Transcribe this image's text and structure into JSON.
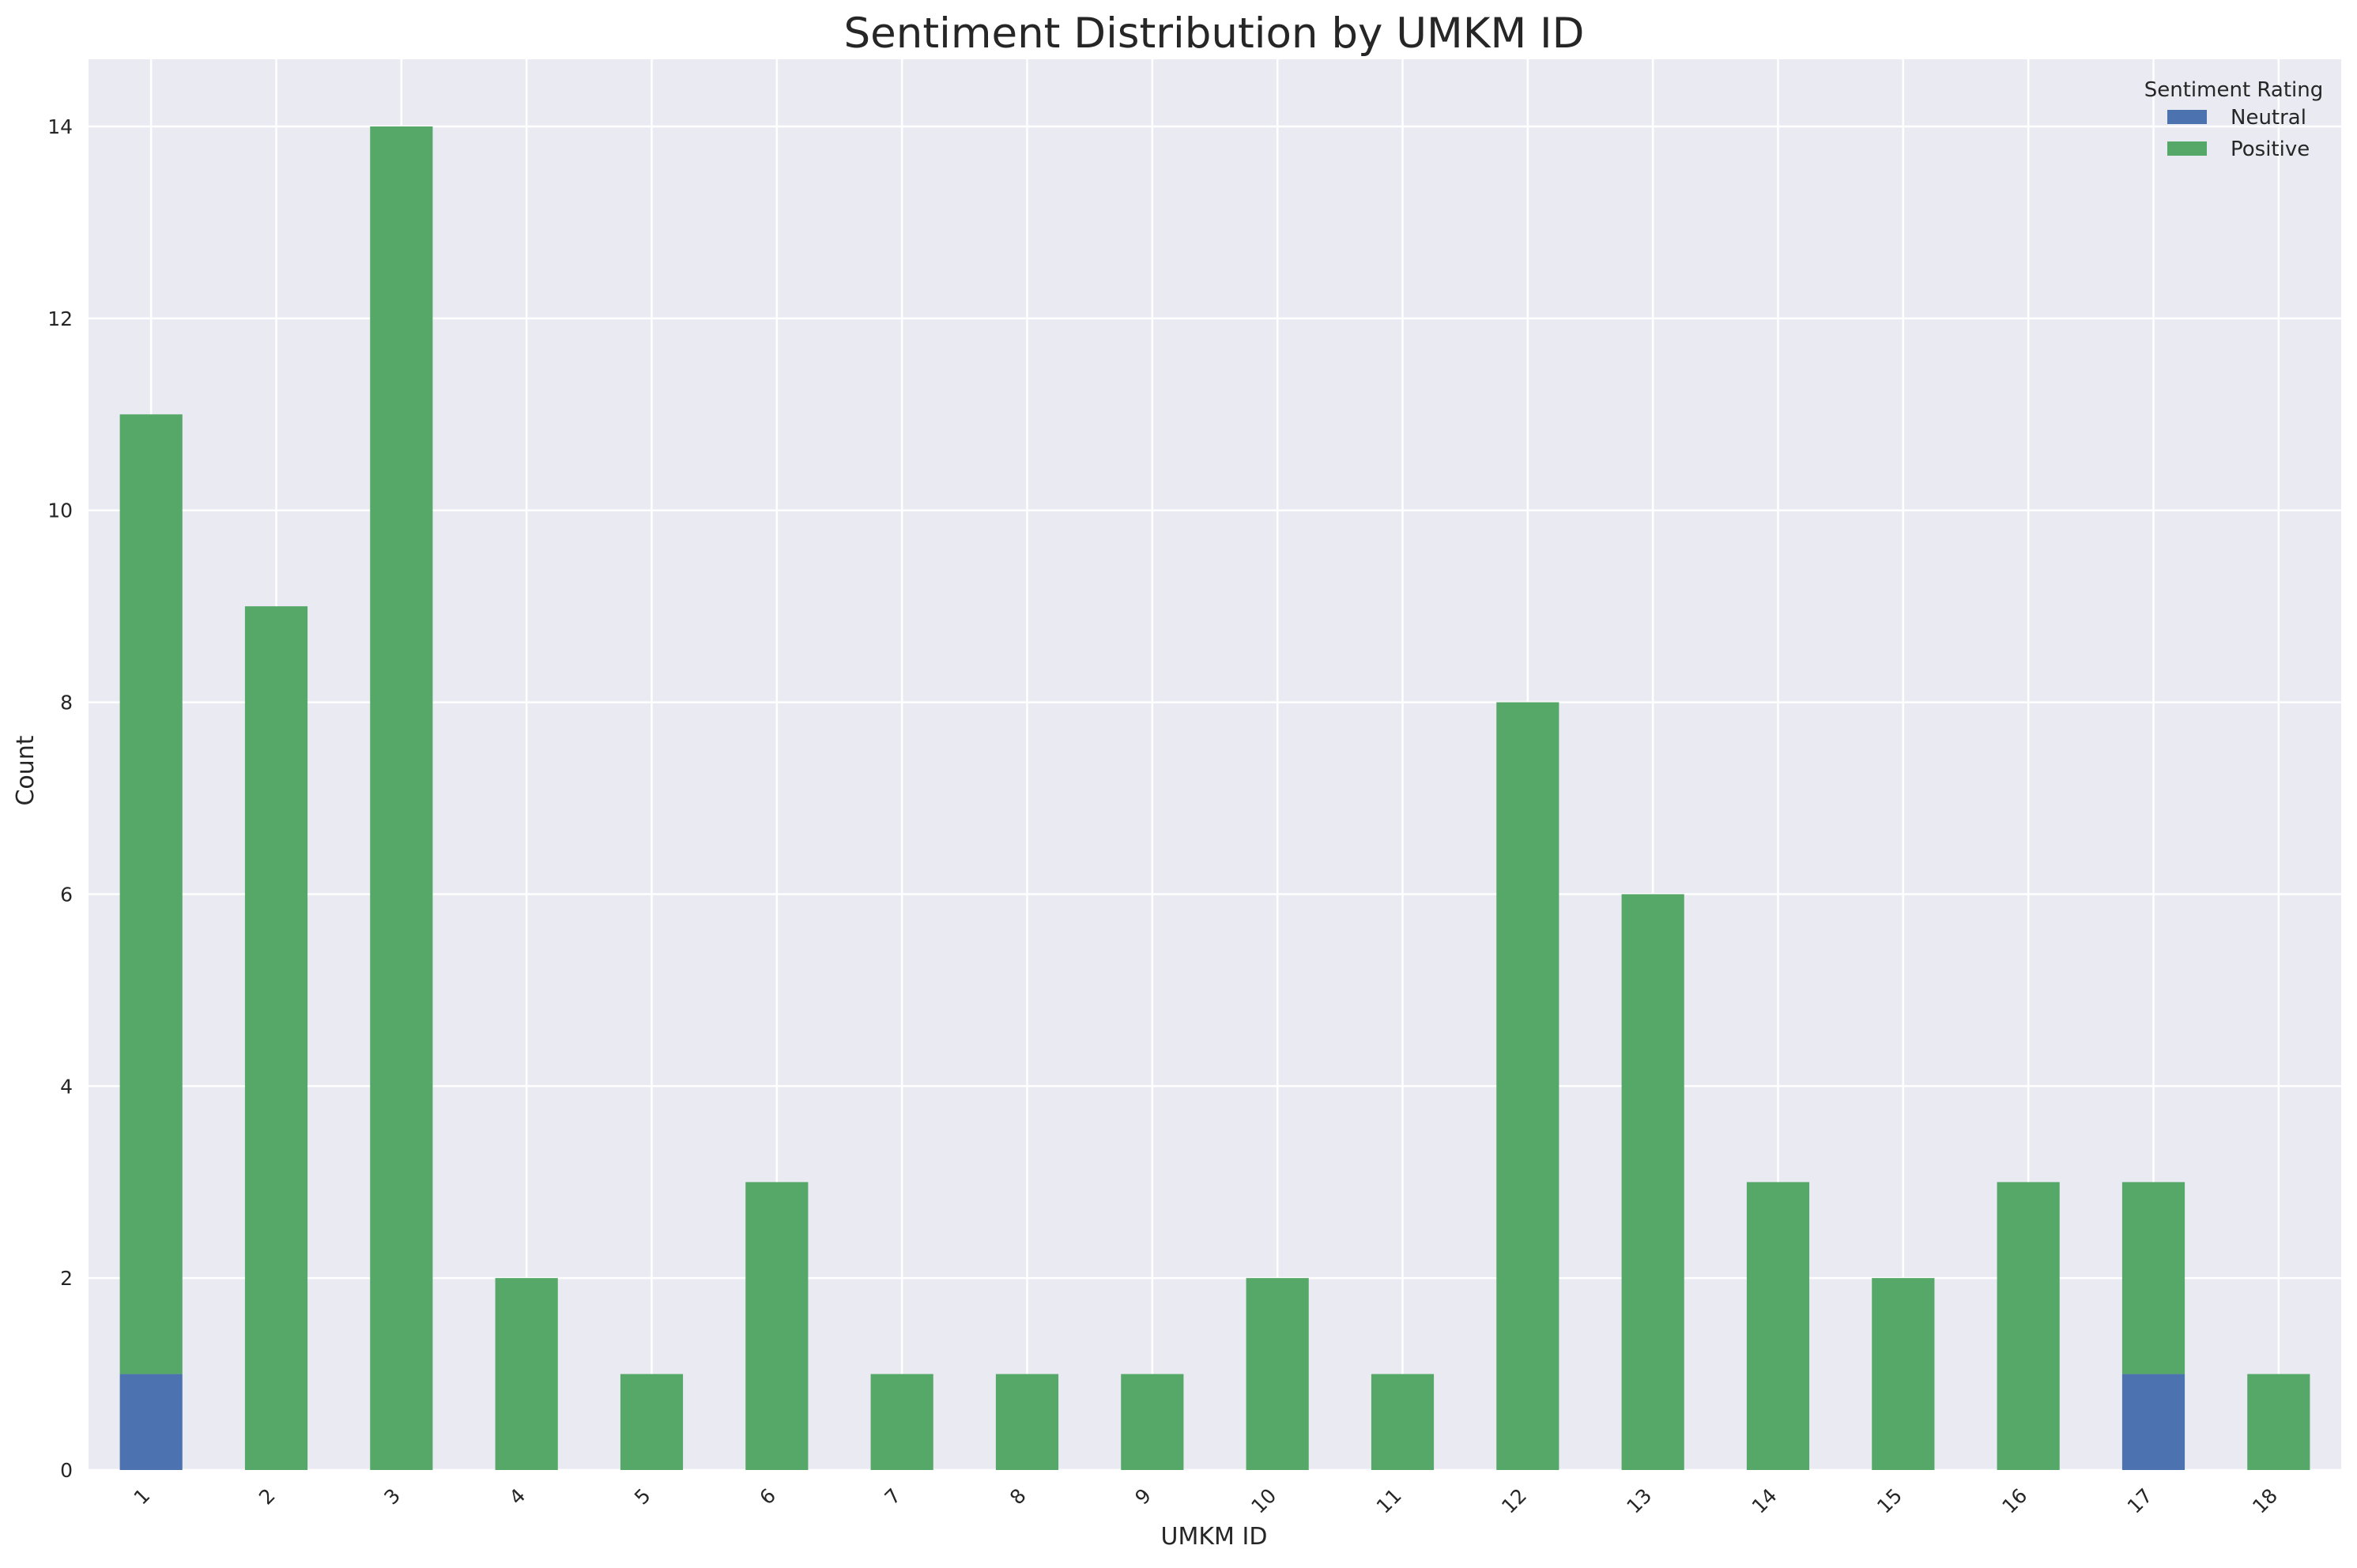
{
  "chart_data": {
    "type": "bar",
    "stacked": true,
    "title": "Sentiment Distribution by UMKM ID",
    "xlabel": "UMKM ID",
    "ylabel": "Count",
    "categories": [
      "1",
      "2",
      "3",
      "4",
      "5",
      "6",
      "7",
      "8",
      "9",
      "10",
      "11",
      "12",
      "13",
      "14",
      "15",
      "16",
      "17",
      "18"
    ],
    "series": [
      {
        "name": "Neutral",
        "color": "#4c72b0",
        "values": [
          1,
          0,
          0,
          0,
          0,
          0,
          0,
          0,
          0,
          0,
          0,
          0,
          0,
          0,
          0,
          0,
          1,
          0
        ]
      },
      {
        "name": "Positive",
        "color": "#55a868",
        "values": [
          10,
          9,
          14,
          2,
          1,
          3,
          1,
          1,
          1,
          2,
          1,
          8,
          6,
          3,
          2,
          3,
          2,
          1
        ]
      }
    ],
    "ylim": [
      0,
      14.7
    ],
    "yticks": [
      0,
      2,
      4,
      6,
      8,
      10,
      12,
      14
    ],
    "grid": true,
    "legend": {
      "title": "Sentiment Rating",
      "position": "top-right"
    },
    "background_color": "#eaeaf2",
    "grid_color": "#ffffff"
  }
}
